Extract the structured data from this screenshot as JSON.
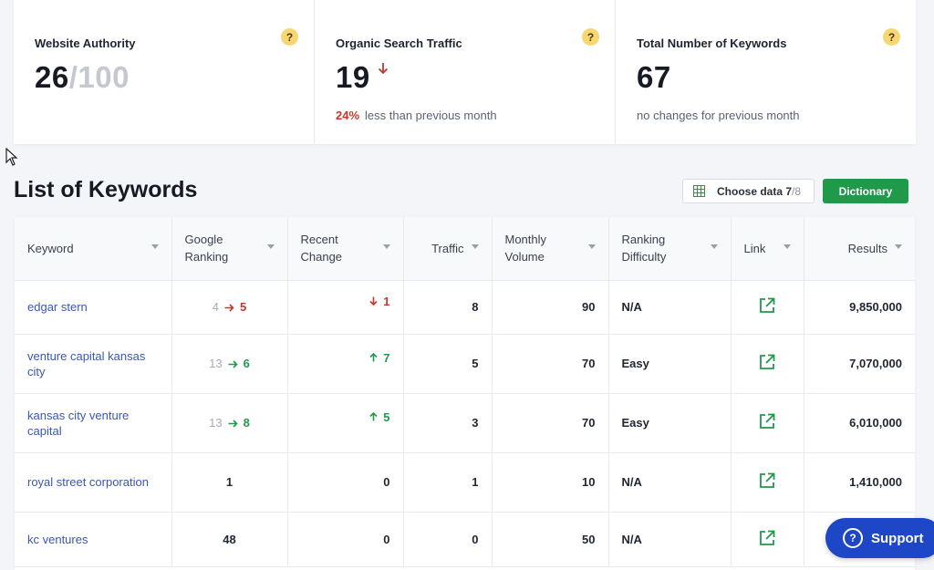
{
  "stats": [
    {
      "title": "Website Authority",
      "value": "26",
      "denom": "/100",
      "help": "?",
      "sub_pct": "",
      "sub_text": ""
    },
    {
      "title": "Organic Search Traffic",
      "value": "19",
      "help": "?",
      "sub_pct": "24%",
      "sub_text": "less than previous month",
      "trend": "down"
    },
    {
      "title": "Total Number of Keywords",
      "value": "67",
      "help": "?",
      "sub_pct": "",
      "sub_text": "no changes for previous month"
    }
  ],
  "list": {
    "title": "List of Keywords",
    "choose_label": "Choose data",
    "choose_count": "7",
    "choose_total": "/8",
    "dictionary_label": "Dictionary"
  },
  "table": {
    "headers": [
      "Keyword",
      "Google Ranking",
      "Recent Change",
      "Traffic",
      "Monthly Volume",
      "Ranking Difficulty",
      "Link",
      "Results"
    ],
    "rows": [
      {
        "keyword": "edgar stern",
        "rank_old": "4",
        "rank_new": "5",
        "rank_dir": "worse",
        "change": "1",
        "change_dir": "down",
        "traffic": "8",
        "volume": "90",
        "difficulty": "N/A",
        "results": "9,850,000"
      },
      {
        "keyword": "venture capital kansas city",
        "rank_old": "13",
        "rank_new": "6",
        "rank_dir": "better",
        "change": "7",
        "change_dir": "up",
        "traffic": "5",
        "volume": "70",
        "difficulty": "Easy",
        "results": "7,070,000"
      },
      {
        "keyword": "kansas city venture capital",
        "rank_old": "13",
        "rank_new": "8",
        "rank_dir": "better",
        "change": "5",
        "change_dir": "up",
        "traffic": "3",
        "volume": "70",
        "difficulty": "Easy",
        "results": "6,010,000"
      },
      {
        "keyword": "royal street corporation",
        "rank": "1",
        "change": "0",
        "traffic": "1",
        "volume": "10",
        "difficulty": "N/A",
        "results": "1,410,000"
      },
      {
        "keyword": "kc ventures",
        "rank": "48",
        "change": "0",
        "traffic": "0",
        "volume": "50",
        "difficulty": "N/A",
        "results": ""
      }
    ]
  },
  "support": {
    "label": "Support",
    "icon_glyph": "?"
  },
  "colors": {
    "accent_green": "#1f9a4b",
    "down_red": "#c0392b",
    "support_blue": "#1e47c8",
    "link_blue": "#3957b5",
    "help_yellow": "#f7d774"
  },
  "icons": {
    "help": "question-icon",
    "trend": "arrow-down-icon",
    "choose": "grid-icon",
    "link": "external-link-icon",
    "sort": "caret-down-icon"
  }
}
